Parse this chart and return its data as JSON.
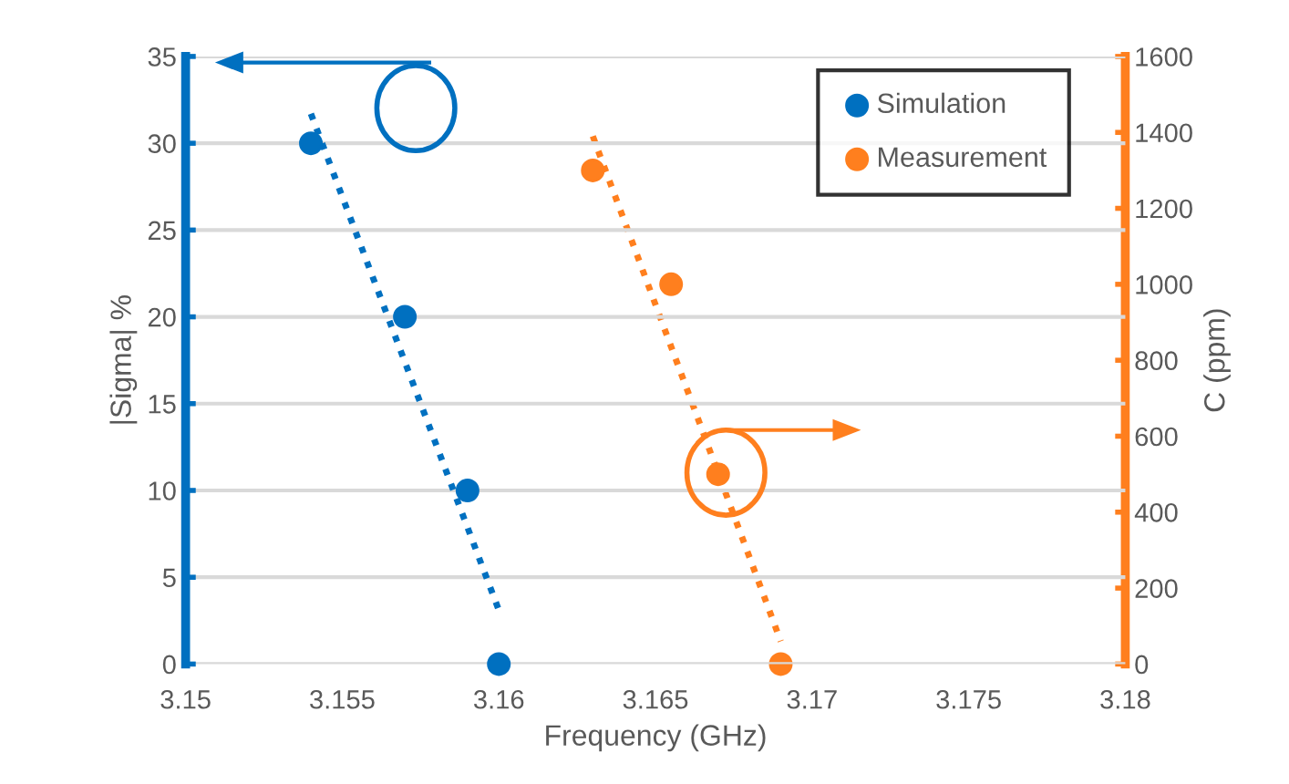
{
  "chart_data": {
    "type": "scatter",
    "xlabel": "Frequency (GHz)",
    "ylabel": "|Sigma| %",
    "y2label": "C (ppm)",
    "xlim": [
      3.15,
      3.18
    ],
    "xticks": [
      3.15,
      3.155,
      3.16,
      3.165,
      3.17,
      3.175,
      3.18
    ],
    "ylim": [
      0,
      35
    ],
    "yticks": [
      0,
      5,
      10,
      15,
      20,
      25,
      30,
      35
    ],
    "y2lim": [
      0,
      1600
    ],
    "y2ticks": [
      0,
      200,
      400,
      600,
      800,
      1000,
      1200,
      1400,
      1600
    ],
    "grid": "y",
    "legend": "top right",
    "series": [
      {
        "name": "Simulation",
        "marker": "circle",
        "color": "#0070c0",
        "x": [
          3.154,
          3.157,
          3.159,
          3.16
        ],
        "values": [
          30,
          20,
          10,
          0
        ]
      },
      {
        "name": "Measurement",
        "marker": "circle",
        "axis": "y2",
        "color": "#ff7f1e",
        "x": [
          3.163,
          3.1655,
          3.167,
          3.169
        ],
        "values": [
          1300,
          1000,
          500,
          0
        ]
      },
      {
        "type": "line",
        "line_style": "dotted",
        "color": "#0070c0",
        "x": [
          3.154,
          3.16
        ],
        "values": [
          31.7,
          3.1
        ]
      },
      {
        "type": "line",
        "line_style": "dotted",
        "axis": "y2",
        "color": "#ff7f1e",
        "x": [
          3.163,
          3.169
        ],
        "values": [
          1390,
          60
        ]
      }
    ]
  }
}
